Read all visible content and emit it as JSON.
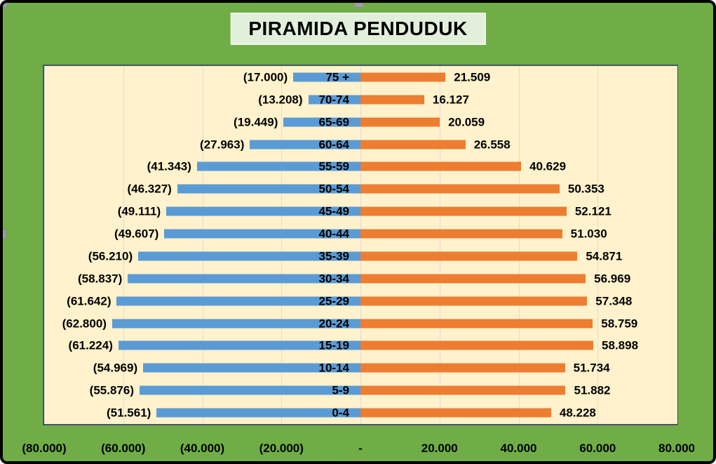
{
  "title": "PIRAMIDA PENDUDUK",
  "colors": {
    "background_green": "#70AD47",
    "plot_background": "#FFF2CC",
    "plot_border": "#44546A",
    "gridline": "#DCDCDC",
    "bar_left_blue": "#5B9BD5",
    "bar_right_orange": "#ED7D31",
    "title_box_fill": "#E2EFDA",
    "outer_border": "#000000",
    "selection_handle": "#9D9D9D",
    "text": "#000000"
  },
  "x_axis": {
    "tick_labels": [
      "(80.000)",
      "(60.000)",
      "(40.000)",
      "(20.000)",
      "-",
      "20.000",
      "40.000",
      "60.000",
      "80.000"
    ],
    "min": -80000,
    "max": 80000,
    "tick_interval": 20000
  },
  "selection_handles": [
    "top-left",
    "top-center",
    "middle-left",
    "middle-right",
    "bottom-center"
  ],
  "chart_data": {
    "type": "bar",
    "subtype": "population-pyramid",
    "orientation": "horizontal",
    "title": "PIRAMIDA PENDUDUK",
    "grid": true,
    "legend": false,
    "xlim": [
      -80000,
      80000
    ],
    "categories": [
      "75 +",
      "70-74",
      "65-69",
      "60-64",
      "55-59",
      "50-54",
      "45-49",
      "40-44",
      "35-39",
      "30-34",
      "25-29",
      "20-24",
      "15-19",
      "10-14",
      "5-9",
      "0-4"
    ],
    "series": [
      {
        "name": "left",
        "color": "#5B9BD5",
        "values": [
          -17000,
          -13208,
          -19449,
          -27963,
          -41343,
          -46327,
          -49111,
          -49607,
          -56210,
          -58837,
          -61642,
          -62800,
          -61224,
          -54969,
          -55876,
          -51561
        ],
        "labels": [
          "(17.000)",
          "(13.208)",
          "(19.449)",
          "(27.963)",
          "(41.343)",
          "(46.327)",
          "(49.111)",
          "(49.607)",
          "(56.210)",
          "(58.837)",
          "(61.642)",
          "(62.800)",
          "(61.224)",
          "(54.969)",
          "(55.876)",
          "(51.561)"
        ]
      },
      {
        "name": "right",
        "color": "#ED7D31",
        "values": [
          21509,
          16127,
          20059,
          26558,
          40629,
          50353,
          52121,
          51030,
          54871,
          56969,
          57348,
          58759,
          58898,
          51734,
          51882,
          48228
        ],
        "labels": [
          "21.509",
          "16.127",
          "20.059",
          "26.558",
          "40.629",
          "50.353",
          "52.121",
          "51.030",
          "54.871",
          "56.969",
          "57.348",
          "58.759",
          "58.898",
          "51.734",
          "51.882",
          "48.228"
        ]
      }
    ]
  }
}
